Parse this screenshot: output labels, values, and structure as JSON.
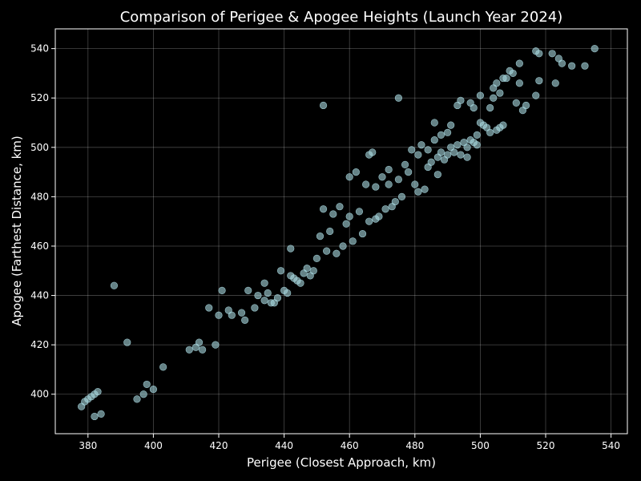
{
  "chart_data": {
    "type": "scatter",
    "title": "Comparison of Perigee & Apogee Heights (Launch Year 2024)",
    "xlabel": "Perigee (Closest Approach, km)",
    "ylabel": "Apogee (Farthest Distance, km)",
    "xlim": [
      370,
      545
    ],
    "ylim": [
      384,
      548
    ],
    "xticks": [
      380,
      400,
      420,
      440,
      460,
      480,
      500,
      520,
      540
    ],
    "yticks": [
      400,
      420,
      440,
      460,
      480,
      500,
      520,
      540
    ],
    "grid": true,
    "colors": {
      "background": "#000000",
      "marker": "#a8d8e0",
      "text": "#ffffff"
    },
    "points": [
      [
        378,
        395
      ],
      [
        379,
        397
      ],
      [
        380,
        398
      ],
      [
        381,
        399
      ],
      [
        382,
        400
      ],
      [
        383,
        401
      ],
      [
        382,
        391
      ],
      [
        384,
        392
      ],
      [
        388,
        444
      ],
      [
        392,
        421
      ],
      [
        395,
        398
      ],
      [
        397,
        400
      ],
      [
        398,
        404
      ],
      [
        400,
        402
      ],
      [
        403,
        411
      ],
      [
        411,
        418
      ],
      [
        413,
        419
      ],
      [
        414,
        421
      ],
      [
        415,
        418
      ],
      [
        417,
        435
      ],
      [
        419,
        420
      ],
      [
        420,
        432
      ],
      [
        421,
        442
      ],
      [
        423,
        434
      ],
      [
        424,
        432
      ],
      [
        427,
        433
      ],
      [
        428,
        430
      ],
      [
        429,
        442
      ],
      [
        431,
        435
      ],
      [
        432,
        440
      ],
      [
        434,
        445
      ],
      [
        434,
        438
      ],
      [
        435,
        441
      ],
      [
        436,
        437
      ],
      [
        437,
        437
      ],
      [
        438,
        439
      ],
      [
        439,
        450
      ],
      [
        440,
        442
      ],
      [
        441,
        441
      ],
      [
        442,
        459
      ],
      [
        442,
        448
      ],
      [
        443,
        447
      ],
      [
        444,
        446
      ],
      [
        445,
        445
      ],
      [
        446,
        449
      ],
      [
        447,
        451
      ],
      [
        448,
        448
      ],
      [
        449,
        450
      ],
      [
        450,
        455
      ],
      [
        451,
        464
      ],
      [
        452,
        475
      ],
      [
        452,
        517
      ],
      [
        453,
        458
      ],
      [
        454,
        466
      ],
      [
        455,
        473
      ],
      [
        456,
        457
      ],
      [
        457,
        476
      ],
      [
        458,
        460
      ],
      [
        459,
        469
      ],
      [
        460,
        472
      ],
      [
        460,
        488
      ],
      [
        461,
        462
      ],
      [
        462,
        490
      ],
      [
        463,
        474
      ],
      [
        464,
        465
      ],
      [
        465,
        485
      ],
      [
        466,
        497
      ],
      [
        467,
        498
      ],
      [
        466,
        470
      ],
      [
        468,
        484
      ],
      [
        468,
        471
      ],
      [
        469,
        472
      ],
      [
        470,
        488
      ],
      [
        471,
        475
      ],
      [
        472,
        491
      ],
      [
        472,
        485
      ],
      [
        473,
        476
      ],
      [
        474,
        478
      ],
      [
        475,
        520
      ],
      [
        475,
        487
      ],
      [
        476,
        480
      ],
      [
        477,
        493
      ],
      [
        478,
        490
      ],
      [
        479,
        499
      ],
      [
        480,
        485
      ],
      [
        481,
        482
      ],
      [
        481,
        497
      ],
      [
        482,
        501
      ],
      [
        483,
        483
      ],
      [
        484,
        499
      ],
      [
        484,
        492
      ],
      [
        485,
        494
      ],
      [
        486,
        510
      ],
      [
        486,
        503
      ],
      [
        487,
        489
      ],
      [
        487,
        496
      ],
      [
        488,
        505
      ],
      [
        488,
        498
      ],
      [
        489,
        495
      ],
      [
        490,
        497
      ],
      [
        490,
        506
      ],
      [
        491,
        500
      ],
      [
        491,
        509
      ],
      [
        492,
        498
      ],
      [
        493,
        501
      ],
      [
        493,
        517
      ],
      [
        494,
        497
      ],
      [
        494,
        519
      ],
      [
        495,
        502
      ],
      [
        496,
        496
      ],
      [
        496,
        500
      ],
      [
        497,
        518
      ],
      [
        497,
        503
      ],
      [
        498,
        516
      ],
      [
        498,
        502
      ],
      [
        499,
        501
      ],
      [
        499,
        505
      ],
      [
        500,
        510
      ],
      [
        500,
        521
      ],
      [
        501,
        509
      ],
      [
        502,
        508
      ],
      [
        503,
        506
      ],
      [
        503,
        516
      ],
      [
        504,
        520
      ],
      [
        504,
        524
      ],
      [
        505,
        507
      ],
      [
        505,
        526
      ],
      [
        506,
        522
      ],
      [
        506,
        508
      ],
      [
        507,
        509
      ],
      [
        507,
        528
      ],
      [
        508,
        528
      ],
      [
        509,
        531
      ],
      [
        510,
        530
      ],
      [
        511,
        518
      ],
      [
        512,
        534
      ],
      [
        512,
        526
      ],
      [
        513,
        515
      ],
      [
        514,
        517
      ],
      [
        517,
        521
      ],
      [
        517,
        539
      ],
      [
        518,
        538
      ],
      [
        518,
        527
      ],
      [
        522,
        538
      ],
      [
        523,
        526
      ],
      [
        524,
        536
      ],
      [
        525,
        534
      ],
      [
        528,
        533
      ],
      [
        532,
        533
      ],
      [
        535,
        540
      ]
    ]
  }
}
